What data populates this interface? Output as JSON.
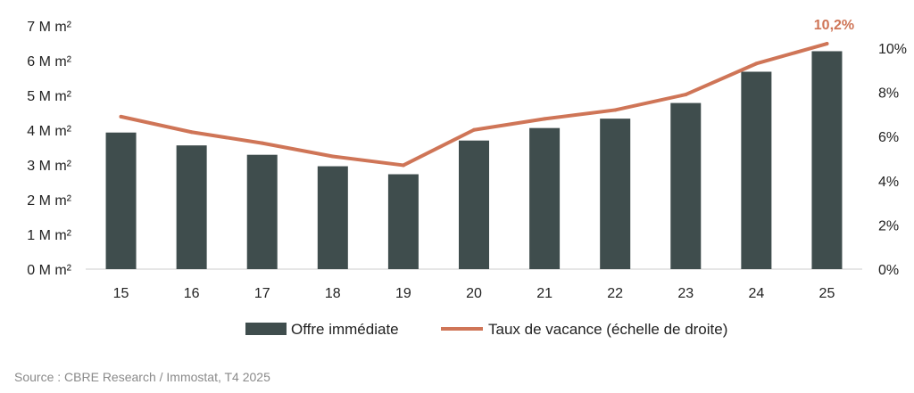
{
  "chart_data": {
    "type": "bar",
    "title": "",
    "xlabel": "",
    "ylabel": "",
    "categories": [
      "15",
      "16",
      "17",
      "18",
      "19",
      "20",
      "21",
      "22",
      "23",
      "24",
      "25"
    ],
    "series": [
      {
        "name": "Offre immédiate",
        "type": "bar",
        "axis": "left",
        "values": [
          3.93,
          3.56,
          3.29,
          2.96,
          2.73,
          3.7,
          4.06,
          4.33,
          4.78,
          5.68,
          6.27
        ]
      },
      {
        "name": "Taux de vacance (échelle de droite)",
        "type": "line",
        "axis": "right",
        "values": [
          6.9,
          6.2,
          5.7,
          5.1,
          4.7,
          6.3,
          6.8,
          7.2,
          7.9,
          9.3,
          10.2
        ]
      }
    ],
    "left_axis": {
      "ylim": [
        0,
        7
      ],
      "tick_labels": [
        "0 M m²",
        "1 M m²",
        "2 M m²",
        "3 M m²",
        "4 M m²",
        "5 M m²",
        "6 M m²",
        "7 M m²"
      ]
    },
    "right_axis": {
      "ylim": [
        0,
        11
      ],
      "tick_labels": [
        "0%",
        "2%",
        "4%",
        "6%",
        "8%",
        "10%"
      ]
    },
    "annotation": {
      "label": "10,2%",
      "series": 1,
      "index": 10
    },
    "legend": {
      "position": "bottom",
      "items": [
        "Offre immédiate",
        "Taux de vacance (échelle de droite)"
      ]
    },
    "grid": false,
    "colors": {
      "bar": "#3f4d4d",
      "line": "#cf7557",
      "text": "#222222",
      "axis": "#cccccc"
    }
  },
  "source": "Source : CBRE Research / Immostat, T4 2025"
}
